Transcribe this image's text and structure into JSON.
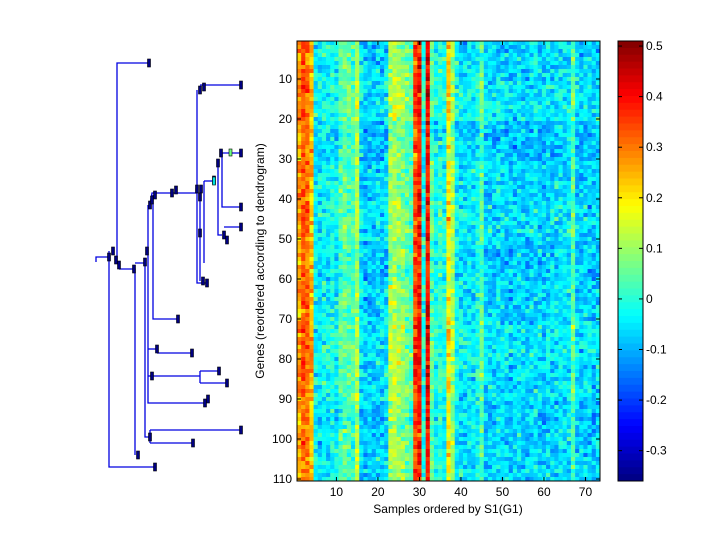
{
  "chart_data": {
    "type": "heatmap",
    "title": "",
    "xlabel": "Samples ordered by S1(G1)",
    "ylabel": "Genes (reordered according to dendrogram)",
    "n_columns": 73,
    "n_rows": 110,
    "x_ticks": [
      10,
      20,
      30,
      40,
      50,
      60,
      70
    ],
    "y_ticks": [
      10,
      20,
      30,
      40,
      50,
      60,
      70,
      80,
      90,
      100,
      110
    ],
    "colorbar": {
      "colormap": "jet",
      "clim": [
        -0.36,
        0.51
      ],
      "ticks": [
        0.5,
        0.4,
        0.3,
        0.2,
        0.1,
        0,
        -0.1,
        -0.2,
        -0.3
      ],
      "tick_labels": [
        "0.5",
        "0.4",
        "0.3",
        "0.2",
        "0.1",
        "0",
        "-0.1",
        "-0.2",
        "-0.3"
      ]
    },
    "column_mean_values": [
      0.26,
      0.33,
      0.3,
      0.24,
      -0.04,
      -0.05,
      -0.03,
      -0.04,
      -0.02,
      -0.04,
      0.03,
      0.05,
      0.04,
      0.02,
      0.12,
      -0.06,
      -0.08,
      -0.07,
      -0.08,
      -0.06,
      -0.07,
      -0.05,
      0.1,
      0.12,
      0.1,
      0.08,
      0.05,
      0.02,
      0.34,
      0.38,
      -0.01,
      0.4,
      0.04,
      -0.02,
      0.0,
      -0.02,
      0.2,
      0.1,
      -0.03,
      -0.05,
      -0.06,
      -0.04,
      -0.05,
      -0.03,
      0.05,
      -0.07,
      -0.06,
      -0.07,
      -0.05,
      -0.06,
      -0.07,
      -0.08,
      -0.07,
      -0.06,
      -0.07,
      -0.08,
      -0.06,
      -0.05,
      -0.07,
      -0.08,
      -0.06,
      -0.07,
      -0.06,
      -0.05,
      -0.06,
      -0.05,
      0.05,
      -0.07,
      -0.08,
      -0.06,
      -0.07,
      -0.08,
      -0.06
    ],
    "row_block_offsets": [
      0.0,
      0.02,
      -0.02,
      0.0,
      0.01,
      -0.01,
      0.0,
      0.02,
      0.01,
      -0.01,
      0.0
    ],
    "noise_sd": 0.06
  }
}
